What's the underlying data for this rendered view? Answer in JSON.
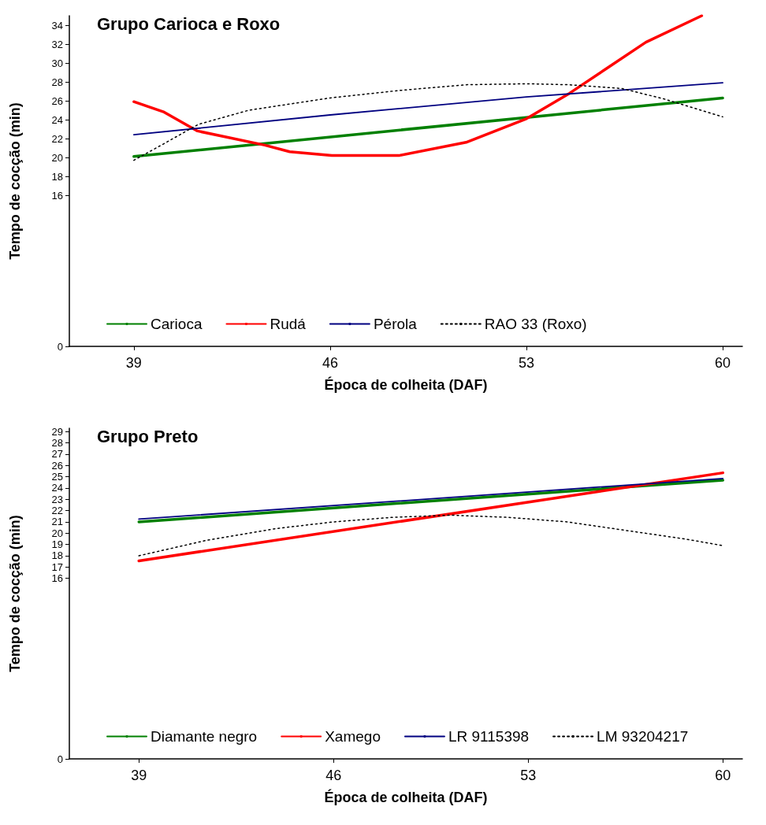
{
  "chart_data": [
    {
      "type": "line",
      "title": "Grupo Carioca e Roxo",
      "xlabel": "Época de colheita (DAF)",
      "ylabel": "Tempo de cocção (min)",
      "xlim": [
        36.7,
        60.7
      ],
      "xticks": [
        39,
        46,
        53,
        60
      ],
      "ylim": [
        0,
        35
      ],
      "yticks": [
        0,
        16,
        18,
        20,
        22,
        24,
        26,
        28,
        30,
        32,
        34
      ],
      "grid": false,
      "legend": "bottom",
      "marker": "none",
      "series": [
        {
          "name": "Carioca",
          "color": "#008000",
          "line_style": "solid",
          "x": [
            39,
            60
          ],
          "values": [
            20.1,
            26.3
          ]
        },
        {
          "name": "Rudá",
          "color": "#ff0000",
          "line_style": "solid",
          "x": [
            39,
            40.08,
            41.27,
            43.67,
            44.56,
            46.06,
            48.45,
            50.85,
            53,
            54.54,
            55.9,
            57.26,
            59.25
          ],
          "values": [
            25.9,
            24.8,
            22.8,
            21.3,
            20.6,
            20.2,
            20.2,
            21.6,
            24.1,
            26.8,
            29.5,
            32.2,
            35
          ]
        },
        {
          "name": "Pérola",
          "color": "#000080",
          "line_style": "solid",
          "x": [
            39,
            46,
            53,
            60
          ],
          "values": [
            22.4,
            24.5,
            26.4,
            27.9
          ]
        },
        {
          "name": "RAO 33 (Roxo)",
          "color": "#000000",
          "line_style": "dotted",
          "x": [
            39,
            40.1,
            41.3,
            43.1,
            46,
            48.5,
            50.9,
            53,
            54.5,
            56.4,
            57.9,
            60
          ],
          "values": [
            19.7,
            21.5,
            23.5,
            25,
            26.3,
            27.1,
            27.7,
            27.8,
            27.7,
            27.3,
            26.2,
            24.3
          ]
        }
      ]
    },
    {
      "type": "line",
      "title": "Grupo Preto",
      "xlabel": "Época de colheita (DAF)",
      "ylabel": "Tempo de cocção (min)",
      "xlim": [
        36.5,
        60.7
      ],
      "xticks": [
        39,
        46,
        53,
        60
      ],
      "ylim": [
        0,
        29.3
      ],
      "yticks": [
        0,
        16,
        17,
        18,
        19,
        20,
        21,
        22,
        23,
        24,
        25,
        26,
        27,
        28,
        29
      ],
      "grid": false,
      "legend": "bottom",
      "marker": "none",
      "series": [
        {
          "name": "Diamante negro",
          "color": "#008000",
          "line_style": "solid",
          "x": [
            39,
            60
          ],
          "values": [
            21.0,
            24.7
          ]
        },
        {
          "name": "Xamego",
          "color": "#ff0000",
          "line_style": "solid",
          "x": [
            39,
            60
          ],
          "values": [
            17.55,
            25.35
          ]
        },
        {
          "name": "LR 9115398",
          "color": "#000080",
          "line_style": "solid",
          "x": [
            39,
            60
          ],
          "values": [
            21.25,
            24.85
          ]
        },
        {
          "name": "LM 93204217",
          "color": "#000000",
          "line_style": "dotted",
          "x": [
            39,
            41.4,
            43.9,
            46,
            48.1,
            50.2,
            52.3,
            54.4,
            56.5,
            58.6,
            60
          ],
          "values": [
            18.0,
            19.35,
            20.4,
            21.0,
            21.4,
            21.6,
            21.4,
            21.0,
            20.25,
            19.5,
            18.9
          ]
        }
      ]
    }
  ]
}
